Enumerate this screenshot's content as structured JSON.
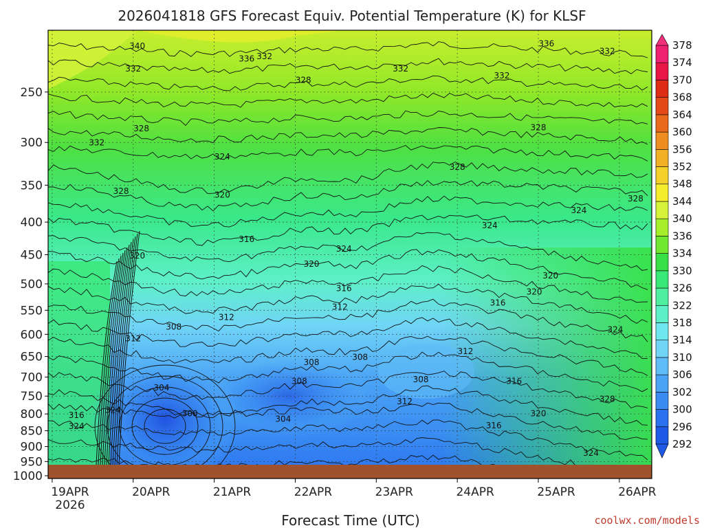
{
  "chart_data": {
    "type": "heatmap",
    "title": "2026041818 GFS Forecast Equiv. Potential Temperature (K) for KLSF",
    "xlabel": "Forecast Time (UTC)",
    "x_ticks": [
      {
        "label": "19APR",
        "sublabel": "2026",
        "day": 0
      },
      {
        "label": "20APR",
        "day": 1
      },
      {
        "label": "21APR",
        "day": 2
      },
      {
        "label": "22APR",
        "day": 3
      },
      {
        "label": "23APR",
        "day": 4
      },
      {
        "label": "24APR",
        "day": 5
      },
      {
        "label": "25APR",
        "day": 6
      },
      {
        "label": "26APR",
        "day": 7
      }
    ],
    "xlim_days": [
      -0.05,
      7.4
    ],
    "y_ticks": [
      250,
      300,
      350,
      400,
      450,
      500,
      550,
      600,
      650,
      700,
      750,
      800,
      850,
      900,
      950,
      1000
    ],
    "ylim_hpa": [
      200,
      1010
    ],
    "y_scale": "log-pressure",
    "grid": true,
    "colorbar": {
      "levels": [
        292,
        296,
        300,
        302,
        306,
        310,
        314,
        318,
        322,
        326,
        330,
        334,
        336,
        340,
        344,
        348,
        352,
        356,
        360,
        364,
        368,
        370,
        374,
        378
      ],
      "colors": [
        "#1f5ae6",
        "#2a72f0",
        "#3a8cf2",
        "#4ba3f5",
        "#5fbcf7",
        "#70d4f6",
        "#6ee8ee",
        "#5ef0c8",
        "#4ef0a0",
        "#3ae878",
        "#38e048",
        "#70e830",
        "#a6ee2a",
        "#d6f23a",
        "#f6ee2c",
        "#f4d02a",
        "#f2b026",
        "#ef8e20",
        "#ea6a1c",
        "#e44a18",
        "#dc2c16",
        "#e81646",
        "#ee2070",
        "#f2307a"
      ],
      "position": "right"
    },
    "contour_labels": [
      {
        "t": 1.05,
        "p": 214,
        "v": "340"
      },
      {
        "t": 2.4,
        "p": 224,
        "v": "336"
      },
      {
        "t": 2.62,
        "p": 222,
        "v": "332"
      },
      {
        "t": 6.1,
        "p": 212,
        "v": "336"
      },
      {
        "t": 6.85,
        "p": 218,
        "v": "332"
      },
      {
        "t": 1.0,
        "p": 232,
        "v": "332"
      },
      {
        "t": 4.3,
        "p": 232,
        "v": "332"
      },
      {
        "t": 5.55,
        "p": 238,
        "v": "332"
      },
      {
        "t": 3.1,
        "p": 242,
        "v": "328"
      },
      {
        "t": 0.55,
        "p": 303,
        "v": "332"
      },
      {
        "t": 1.1,
        "p": 288,
        "v": "328"
      },
      {
        "t": 6.0,
        "p": 287,
        "v": "328"
      },
      {
        "t": 2.1,
        "p": 319,
        "v": "324"
      },
      {
        "t": 5.0,
        "p": 331,
        "v": "328"
      },
      {
        "t": 0.85,
        "p": 361,
        "v": "328"
      },
      {
        "t": 2.1,
        "p": 366,
        "v": "320"
      },
      {
        "t": 7.2,
        "p": 371,
        "v": "328"
      },
      {
        "t": 6.5,
        "p": 387,
        "v": "324"
      },
      {
        "t": 5.4,
        "p": 409,
        "v": "324"
      },
      {
        "t": 2.4,
        "p": 430,
        "v": "316"
      },
      {
        "t": 3.6,
        "p": 445,
        "v": "324"
      },
      {
        "t": 1.05,
        "p": 456,
        "v": "320"
      },
      {
        "t": 3.2,
        "p": 470,
        "v": "320"
      },
      {
        "t": 6.15,
        "p": 490,
        "v": "320"
      },
      {
        "t": 3.6,
        "p": 513,
        "v": "316"
      },
      {
        "t": 5.95,
        "p": 520,
        "v": "320"
      },
      {
        "t": 5.5,
        "p": 541,
        "v": "316"
      },
      {
        "t": 3.55,
        "p": 549,
        "v": "312"
      },
      {
        "t": 2.15,
        "p": 570,
        "v": "312"
      },
      {
        "t": 1.5,
        "p": 590,
        "v": "308"
      },
      {
        "t": 6.95,
        "p": 596,
        "v": "324"
      },
      {
        "t": 1.0,
        "p": 615,
        "v": "312"
      },
      {
        "t": 5.1,
        "p": 644,
        "v": "312"
      },
      {
        "t": 3.8,
        "p": 658,
        "v": "308"
      },
      {
        "t": 3.2,
        "p": 670,
        "v": "308"
      },
      {
        "t": 4.55,
        "p": 713,
        "v": "308"
      },
      {
        "t": 3.05,
        "p": 718,
        "v": "308"
      },
      {
        "t": 1.35,
        "p": 735,
        "v": "304"
      },
      {
        "t": 5.7,
        "p": 718,
        "v": "316"
      },
      {
        "t": 4.35,
        "p": 772,
        "v": "312"
      },
      {
        "t": 0.75,
        "p": 797,
        "v": "324"
      },
      {
        "t": 1.7,
        "p": 807,
        "v": "300"
      },
      {
        "t": 0.3,
        "p": 812,
        "v": "316"
      },
      {
        "t": 2.85,
        "p": 823,
        "v": "304"
      },
      {
        "t": 6.85,
        "p": 766,
        "v": "328"
      },
      {
        "t": 6.0,
        "p": 807,
        "v": "320"
      },
      {
        "t": 5.45,
        "p": 842,
        "v": "316"
      },
      {
        "t": 0.3,
        "p": 845,
        "v": "324"
      },
      {
        "t": 6.65,
        "p": 930,
        "v": "324"
      }
    ]
  },
  "credit": "coolwx.com/models"
}
